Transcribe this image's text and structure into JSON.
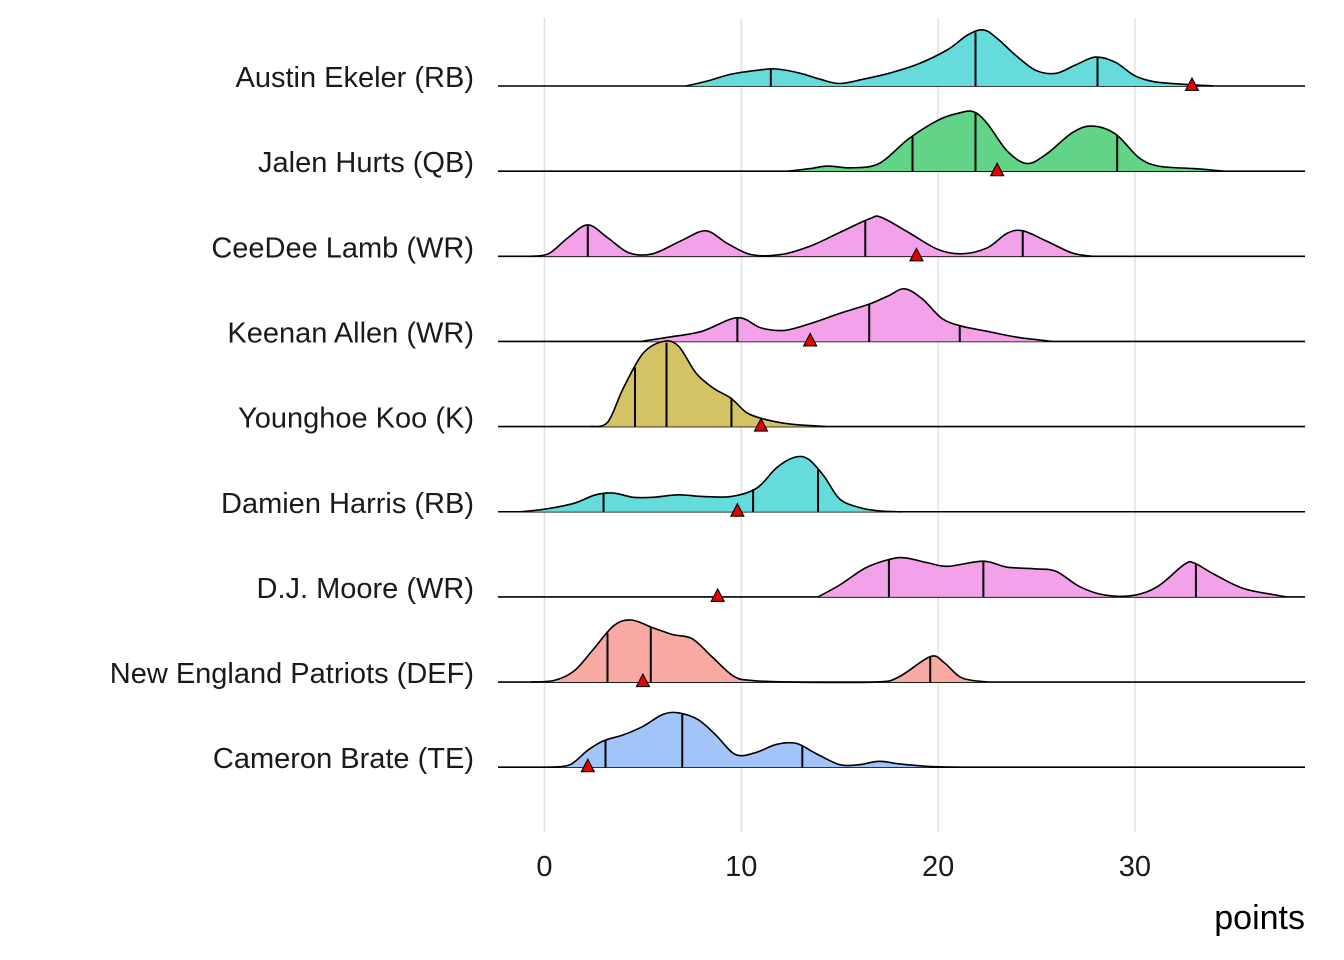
{
  "chart_data": {
    "type": "ridgeline",
    "title": "",
    "xlabel": "points",
    "ylabel": "",
    "xlim": [
      -2.3,
      38.6
    ],
    "x_ticks": [
      0,
      10,
      20,
      30
    ],
    "grid": true,
    "legend": "none",
    "marker_shape": "triangle",
    "series": [
      {
        "name": "Austin Ekeler (RB)",
        "color": "#65dcdb",
        "quantiles": [
          11.5,
          21.9,
          28.1
        ],
        "marker": 32.9,
        "density": [
          [
            7.2,
            0
          ],
          [
            8.3,
            0.06
          ],
          [
            9.5,
            0.14
          ],
          [
            11,
            0.19
          ],
          [
            11.8,
            0.2
          ],
          [
            13,
            0.15
          ],
          [
            14,
            0.08
          ],
          [
            15,
            0.03
          ],
          [
            16.2,
            0.08
          ],
          [
            17.5,
            0.15
          ],
          [
            19,
            0.26
          ],
          [
            20.5,
            0.43
          ],
          [
            21.5,
            0.6
          ],
          [
            22.3,
            0.66
          ],
          [
            23,
            0.56
          ],
          [
            24,
            0.35
          ],
          [
            25,
            0.18
          ],
          [
            26,
            0.15
          ],
          [
            27,
            0.25
          ],
          [
            28,
            0.34
          ],
          [
            29,
            0.28
          ],
          [
            30,
            0.12
          ],
          [
            31,
            0.05
          ],
          [
            32.5,
            0.02
          ],
          [
            34,
            0
          ]
        ]
      },
      {
        "name": "Jalen Hurts (QB)",
        "color": "#62d488",
        "quantiles": [
          18.7,
          21.9,
          29.1
        ],
        "marker": 23.0,
        "density": [
          [
            12.4,
            0
          ],
          [
            13.5,
            0.03
          ],
          [
            14.4,
            0.06
          ],
          [
            15.6,
            0.04
          ],
          [
            17,
            0.09
          ],
          [
            18.5,
            0.38
          ],
          [
            20,
            0.6
          ],
          [
            21,
            0.68
          ],
          [
            21.8,
            0.7
          ],
          [
            22.5,
            0.56
          ],
          [
            23.5,
            0.24
          ],
          [
            24.5,
            0.09
          ],
          [
            25.5,
            0.2
          ],
          [
            26.8,
            0.45
          ],
          [
            27.8,
            0.53
          ],
          [
            29,
            0.44
          ],
          [
            30.2,
            0.16
          ],
          [
            31.2,
            0.06
          ],
          [
            33,
            0.03
          ],
          [
            34.5,
            0
          ]
        ]
      },
      {
        "name": "CeeDee Lamb (WR)",
        "color": "#f3a1e9",
        "quantiles": [
          2.2,
          16.3,
          24.3
        ],
        "marker": 18.9,
        "density": [
          [
            -0.8,
            0
          ],
          [
            0.2,
            0.03
          ],
          [
            1.2,
            0.22
          ],
          [
            2.2,
            0.37
          ],
          [
            3.2,
            0.22
          ],
          [
            4.3,
            0.04
          ],
          [
            5.5,
            0.03
          ],
          [
            7,
            0.19
          ],
          [
            8.2,
            0.3
          ],
          [
            9.3,
            0.15
          ],
          [
            10.5,
            0.02
          ],
          [
            12,
            0.02
          ],
          [
            13.5,
            0.12
          ],
          [
            15,
            0.28
          ],
          [
            16.5,
            0.44
          ],
          [
            17.1,
            0.46
          ],
          [
            18.5,
            0.28
          ],
          [
            20,
            0.08
          ],
          [
            21.2,
            0.03
          ],
          [
            22.5,
            0.1
          ],
          [
            23.5,
            0.27
          ],
          [
            24.3,
            0.3
          ],
          [
            25.5,
            0.18
          ],
          [
            26.8,
            0.04
          ],
          [
            27.8,
            0
          ]
        ]
      },
      {
        "name": "Keenan Allen (WR)",
        "color": "#f3a1e9",
        "quantiles": [
          9.8,
          16.5,
          21.1
        ],
        "marker": 13.5,
        "density": [
          [
            4.9,
            0
          ],
          [
            6.3,
            0.05
          ],
          [
            8,
            0.12
          ],
          [
            9.8,
            0.28
          ],
          [
            11,
            0.16
          ],
          [
            12.2,
            0.13
          ],
          [
            13.5,
            0.21
          ],
          [
            15,
            0.33
          ],
          [
            16.5,
            0.44
          ],
          [
            17.5,
            0.54
          ],
          [
            18.3,
            0.62
          ],
          [
            19.2,
            0.5
          ],
          [
            20.2,
            0.27
          ],
          [
            21.2,
            0.18
          ],
          [
            22.5,
            0.12
          ],
          [
            24,
            0.05
          ],
          [
            25.8,
            0
          ]
        ]
      },
      {
        "name": "Younghoe Koo (K)",
        "color": "#d3c364",
        "quantiles": [
          4.6,
          6.2,
          9.5
        ],
        "marker": 11.0,
        "density": [
          [
            2.3,
            0
          ],
          [
            3.2,
            0.05
          ],
          [
            4,
            0.45
          ],
          [
            5,
            0.86
          ],
          [
            6,
            1.0
          ],
          [
            6.8,
            0.95
          ],
          [
            7.7,
            0.63
          ],
          [
            8.6,
            0.45
          ],
          [
            9.5,
            0.33
          ],
          [
            10.3,
            0.16
          ],
          [
            11.3,
            0.08
          ],
          [
            12.5,
            0.03
          ],
          [
            14.3,
            0
          ]
        ]
      },
      {
        "name": "Damien Harris (RB)",
        "color": "#65dcdb",
        "quantiles": [
          3.0,
          10.6,
          13.9
        ],
        "marker": 9.8,
        "density": [
          [
            -1.2,
            0
          ],
          [
            0,
            0.03
          ],
          [
            1.5,
            0.1
          ],
          [
            2.6,
            0.2
          ],
          [
            3.5,
            0.22
          ],
          [
            4.5,
            0.17
          ],
          [
            5.5,
            0.17
          ],
          [
            6.8,
            0.2
          ],
          [
            8,
            0.18
          ],
          [
            9.5,
            0.18
          ],
          [
            10.8,
            0.28
          ],
          [
            11.8,
            0.52
          ],
          [
            12.7,
            0.64
          ],
          [
            13.4,
            0.62
          ],
          [
            14.2,
            0.42
          ],
          [
            15,
            0.15
          ],
          [
            16,
            0.05
          ],
          [
            17,
            0.01
          ],
          [
            18.2,
            0
          ]
        ]
      },
      {
        "name": "D.J. Moore (WR)",
        "color": "#f3a1e9",
        "quantiles": [
          17.5,
          22.3,
          33.1
        ],
        "marker": 8.8,
        "density": [
          [
            13.9,
            0
          ],
          [
            15,
            0.14
          ],
          [
            16.3,
            0.34
          ],
          [
            17.5,
            0.44
          ],
          [
            18.3,
            0.46
          ],
          [
            19.5,
            0.4
          ],
          [
            20.5,
            0.36
          ],
          [
            22.3,
            0.42
          ],
          [
            23.5,
            0.35
          ],
          [
            25,
            0.33
          ],
          [
            26,
            0.3
          ],
          [
            27.2,
            0.12
          ],
          [
            28.5,
            0.02
          ],
          [
            30,
            0.02
          ],
          [
            31.2,
            0.13
          ],
          [
            32.5,
            0.38
          ],
          [
            33,
            0.4
          ],
          [
            34,
            0.27
          ],
          [
            35.5,
            0.1
          ],
          [
            37.2,
            0.02
          ],
          [
            37.7,
            0
          ]
        ]
      },
      {
        "name": "New England Patriots (DEF)",
        "color": "#f8a9a1",
        "quantiles": [
          3.2,
          5.4,
          19.6
        ],
        "marker": 5.0,
        "density": [
          [
            -0.7,
            0
          ],
          [
            0.5,
            0.02
          ],
          [
            1.5,
            0.13
          ],
          [
            2.5,
            0.39
          ],
          [
            3.5,
            0.66
          ],
          [
            4.4,
            0.73
          ],
          [
            5.5,
            0.64
          ],
          [
            6.5,
            0.56
          ],
          [
            7.5,
            0.51
          ],
          [
            8.5,
            0.3
          ],
          [
            9.6,
            0.07
          ],
          [
            10.5,
            0.02
          ],
          [
            12.5,
            0
          ],
          [
            16.8,
            0
          ],
          [
            18,
            0.06
          ],
          [
            19.6,
            0.3
          ],
          [
            20.3,
            0.23
          ],
          [
            21.2,
            0.05
          ],
          [
            22.5,
            0
          ]
        ]
      },
      {
        "name": "Cameron Brate (TE)",
        "color": "#a2c5f9",
        "quantiles": [
          3.1,
          7.0,
          13.1
        ],
        "marker": 2.2,
        "density": [
          [
            0.2,
            0
          ],
          [
            1.3,
            0.03
          ],
          [
            2.2,
            0.2
          ],
          [
            3,
            0.31
          ],
          [
            4,
            0.38
          ],
          [
            5,
            0.48
          ],
          [
            6,
            0.62
          ],
          [
            6.8,
            0.64
          ],
          [
            7.8,
            0.56
          ],
          [
            8.7,
            0.38
          ],
          [
            9.7,
            0.15
          ],
          [
            10.7,
            0.17
          ],
          [
            11.8,
            0.27
          ],
          [
            12.8,
            0.28
          ],
          [
            13.8,
            0.16
          ],
          [
            15,
            0.03
          ],
          [
            16,
            0.03
          ],
          [
            17,
            0.07
          ],
          [
            18,
            0.04
          ],
          [
            19.5,
            0.01
          ],
          [
            21,
            0
          ]
        ]
      }
    ]
  }
}
